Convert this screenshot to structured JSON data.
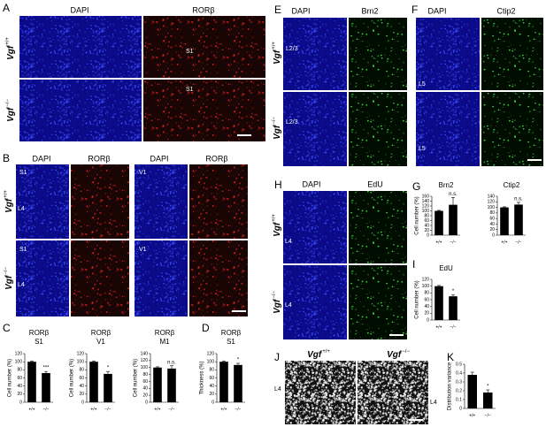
{
  "figure": {
    "panel_letters": [
      "A",
      "B",
      "C",
      "D",
      "E",
      "F",
      "G",
      "H",
      "I",
      "J",
      "K"
    ],
    "genotypes": [
      {
        "gene": "Vgf",
        "allele": "+/+"
      },
      {
        "gene": "Vgf",
        "allele": "−/−"
      }
    ],
    "stain_labels": [
      "DAPI",
      "RORβ",
      "Brn2",
      "Ctip2",
      "EdU"
    ],
    "region_labels": [
      "S1",
      "V1",
      "L4",
      "L2/3",
      "L5"
    ]
  },
  "chart_data": [
    {
      "type": "bar",
      "title": "RORβ",
      "subtitle": "S1",
      "y_label": "Cell number (%)",
      "categories": [
        "+/+",
        "−/−"
      ],
      "values": [
        100,
        72
      ],
      "errors": [
        2,
        4
      ],
      "annotation": "***",
      "color": "#000000",
      "ylim": [
        0,
        120
      ],
      "yticks": [
        0,
        20,
        40,
        60,
        80,
        100,
        120
      ]
    },
    {
      "type": "bar",
      "title": "RORβ",
      "subtitle": "V1",
      "y_label": "Cell number (%)",
      "categories": [
        "+/+",
        "−/−"
      ],
      "values": [
        100,
        70
      ],
      "errors": [
        2,
        6
      ],
      "annotation": "*",
      "color": "#000000",
      "ylim": [
        0,
        120
      ],
      "yticks": [
        0,
        20,
        40,
        60,
        80,
        100,
        120
      ]
    },
    {
      "type": "bar",
      "title": "RORβ",
      "subtitle": "M1",
      "y_label": "Cell number (%)",
      "categories": [
        "+/+",
        "−/−"
      ],
      "values": [
        100,
        97
      ],
      "errors": [
        2,
        8
      ],
      "annotation": "n.s.",
      "color": "#000000",
      "ylim": [
        0,
        140
      ],
      "yticks": [
        0,
        20,
        40,
        60,
        80,
        100,
        120,
        140
      ]
    },
    {
      "type": "bar",
      "title": "RORβ",
      "subtitle": "S1",
      "y_label": "Thickness (%)",
      "categories": [
        "+/+",
        "−/−"
      ],
      "values": [
        100,
        92
      ],
      "errors": [
        2,
        4
      ],
      "annotation": "*",
      "color": "#000000",
      "ylim": [
        0,
        120
      ],
      "yticks": [
        0,
        20,
        40,
        60,
        80,
        100,
        120
      ]
    },
    {
      "type": "bar",
      "title": "Brn2",
      "y_label": "Cell number (%)",
      "categories": [
        "+/+",
        "−/−"
      ],
      "values": [
        100,
        125
      ],
      "errors": [
        2,
        30
      ],
      "annotation": "n.s.",
      "color": "#000000",
      "ylim": [
        0,
        160
      ],
      "yticks": [
        0,
        20,
        40,
        60,
        80,
        100,
        120,
        140,
        160
      ]
    },
    {
      "type": "bar",
      "title": "Ctip2",
      "categories": [
        "+/+",
        "−/−"
      ],
      "values": [
        100,
        110
      ],
      "errors": [
        2,
        8
      ],
      "annotation": "n.s.",
      "color": "#000000",
      "ylim": [
        0,
        140
      ],
      "yticks": [
        0,
        20,
        40,
        60,
        80,
        100,
        120,
        140
      ]
    },
    {
      "type": "bar",
      "title": "EdU",
      "y_label": "Cell number (%)",
      "categories": [
        "+/+",
        "−/−"
      ],
      "values": [
        100,
        70
      ],
      "errors": [
        2,
        4
      ],
      "annotation": "*",
      "color": "#000000",
      "ylim": [
        0,
        120
      ],
      "yticks": [
        0,
        20,
        40,
        60,
        80,
        100,
        120
      ]
    },
    {
      "type": "bar",
      "y_label": "Distribution variance",
      "categories": [
        "+/+",
        "−/−"
      ],
      "values": [
        0.38,
        0.18
      ],
      "errors": [
        0.03,
        0.03
      ],
      "annotation": "*",
      "color": "#000000",
      "ylim": [
        0,
        0.5
      ],
      "yticks": [
        0,
        0.1,
        0.2,
        0.3,
        0.4,
        0.5
      ]
    }
  ]
}
